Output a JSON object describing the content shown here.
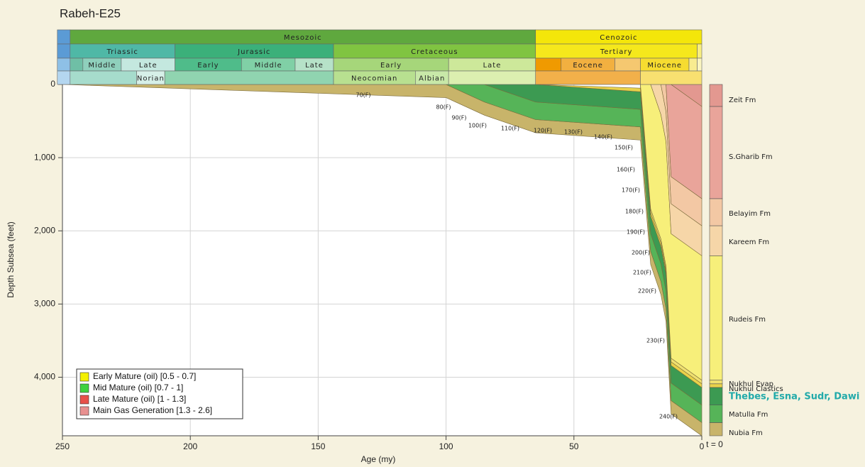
{
  "chart_data": {
    "type": "burial-history",
    "title": "Rabeh-E25",
    "x_label": "Age (my)",
    "y_label": "Depth Subsea (feet)",
    "present_label": "t = 0",
    "xlim": [
      250,
      0
    ],
    "ylim": [
      0,
      4800
    ],
    "xticks": [
      250,
      200,
      150,
      100,
      50,
      0
    ],
    "yticks": [
      0,
      {
        "value": 1000,
        "label": "1,000"
      },
      {
        "value": 2000,
        "label": "2,000"
      },
      {
        "value": 3000,
        "label": "3,000"
      },
      {
        "value": 4000,
        "label": "4,000"
      }
    ],
    "grid": true,
    "timescale": [
      [
        {
          "start": 252,
          "end": 247,
          "color": "#5b9bd5"
        },
        {
          "label": "Mesozoic",
          "start": 247,
          "end": 65,
          "color": "#5fa83e"
        },
        {
          "label": "Cenozoic",
          "start": 65,
          "end": 0,
          "color": "#f4e60a"
        }
      ],
      [
        {
          "start": 252,
          "end": 247,
          "color": "#5b9bd5"
        },
        {
          "label": "Triassic",
          "start": 247,
          "end": 206,
          "color": "#4fb8a6"
        },
        {
          "label": "Jurassic",
          "start": 206,
          "end": 144,
          "color": "#3bb07a"
        },
        {
          "label": "Cretaceous",
          "start": 144,
          "end": 65,
          "color": "#80c441"
        },
        {
          "label": "Tertiary",
          "start": 65,
          "end": 1.8,
          "color": "#f5e81c"
        },
        {
          "start": 1.8,
          "end": 0,
          "color": "#f8ee80"
        }
      ],
      [
        {
          "start": 252,
          "end": 247,
          "color": "#8ec0e6"
        },
        {
          "start": 247,
          "end": 242,
          "color": "#6fbfa6"
        },
        {
          "label": "Middle",
          "start": 242,
          "end": 227,
          "color": "#8fd0bc"
        },
        {
          "label": "Late",
          "start": 227,
          "end": 206,
          "color": "#c4e8df"
        },
        {
          "label": "Early",
          "start": 206,
          "end": 180,
          "color": "#4fbc8a"
        },
        {
          "label": "Middle",
          "start": 180,
          "end": 159,
          "color": "#80d0a6"
        },
        {
          "label": "Late",
          "start": 159,
          "end": 144,
          "color": "#b6e2c8"
        },
        {
          "label": "Early",
          "start": 144,
          "end": 99,
          "color": "#a6d67a"
        },
        {
          "label": "Late",
          "start": 99,
          "end": 65,
          "color": "#cde89a"
        },
        {
          "start": 65,
          "end": 55,
          "color": "#f09a00"
        },
        {
          "label": "Eocene",
          "start": 55,
          "end": 34,
          "color": "#f2b040"
        },
        {
          "start": 34,
          "end": 24,
          "color": "#f5c870"
        },
        {
          "label": "Miocene",
          "start": 24,
          "end": 5,
          "color": "#f6dc30"
        },
        {
          "start": 5,
          "end": 1.8,
          "color": "#f8ec90"
        },
        {
          "start": 1.8,
          "end": 0,
          "color": "#fbf5c0"
        }
      ],
      [
        {
          "start": 252,
          "end": 247,
          "color": "#b4d6f0"
        },
        {
          "start": 247,
          "end": 221,
          "color": "#a6dccc"
        },
        {
          "label": "Norian",
          "start": 221,
          "end": 210,
          "color": "#d6f0e8"
        },
        {
          "start": 210,
          "end": 144,
          "color": "#90d4b0"
        },
        {
          "label": "Neocomian",
          "start": 144,
          "end": 112,
          "color": "#b8e090"
        },
        {
          "label": "Albian",
          "start": 112,
          "end": 99,
          "color": "#c8e8a8"
        },
        {
          "start": 99,
          "end": 65,
          "color": "#dcefb0"
        },
        {
          "start": 65,
          "end": 24,
          "color": "#f2b04a"
        },
        {
          "start": 24,
          "end": 0,
          "color": "#f8e070"
        }
      ]
    ],
    "x": [
      250,
      100,
      85,
      65,
      24,
      20,
      16,
      14,
      12,
      0
    ],
    "formations": [
      {
        "name": "Nubia Fm",
        "color": "#c8b46a",
        "depths": [
          0,
          180,
          420,
          660,
          760,
          2460,
          2870,
          3240,
          4500,
          4800
        ]
      },
      {
        "name": "Matulla Fm",
        "color": "#56b458",
        "depths": [
          null,
          0,
          240,
          480,
          580,
          2280,
          2690,
          3060,
          4320,
          4620
        ]
      },
      {
        "name": "Thebes, Esna, Sudr, Dawi",
        "color": "#3c9a52",
        "depths": [
          null,
          null,
          0,
          240,
          340,
          2040,
          2450,
          2820,
          4080,
          4380
        ]
      },
      {
        "name": "Nukhul Clastics",
        "color": "#e9d24a",
        "depths": [
          null,
          null,
          null,
          0,
          100,
          1800,
          2210,
          2580,
          3840,
          4140
        ]
      },
      {
        "name": "Nukhul Evap",
        "color": "#efe070",
        "depths": [
          null,
          null,
          null,
          null,
          50,
          1750,
          2160,
          2530,
          3790,
          4090
        ]
      },
      {
        "name": "Rudeis Fm",
        "color": "#f7ef7a",
        "depths": [
          null,
          null,
          null,
          null,
          0,
          1700,
          2110,
          2480,
          3740,
          4040
        ]
      },
      {
        "name": "Kareem Fm",
        "color": "#f6d6a8",
        "depths": [
          null,
          null,
          null,
          null,
          null,
          0,
          410,
          780,
          2040,
          2340
        ]
      },
      {
        "name": "Belayim Fm",
        "color": "#f3c8a4",
        "depths": [
          null,
          null,
          null,
          null,
          null,
          null,
          0,
          370,
          1630,
          1930
        ]
      },
      {
        "name": "S.Gharib Fm",
        "color": "#e9a49a",
        "depths": [
          null,
          null,
          null,
          null,
          null,
          null,
          null,
          0,
          1260,
          1560
        ]
      },
      {
        "name": "Zeit Fm",
        "color": "#e39890",
        "depths": [
          null,
          null,
          null,
          null,
          null,
          null,
          null,
          null,
          0,
          300
        ]
      }
    ],
    "isotherms": [
      "70(F)",
      "80(F)",
      "90(F)",
      "100(F)",
      "110(F)",
      "120(F)",
      "130(F)",
      "140(F)",
      "150(F)",
      "160(F)",
      "170(F)",
      "180(F)",
      "190(F)",
      "200(F)",
      "210(F)",
      "220(F)",
      "230(F)",
      "240(F)"
    ],
    "legend": [
      {
        "name": "Early Mature (oil) [0.5 - 0.7]",
        "color": "#f4f000"
      },
      {
        "name": "Mid Mature (oil) [0.7 - 1]",
        "color": "#3ed23e"
      },
      {
        "name": "Late Mature (oil) [1 - 1.3]",
        "color": "#e8504a"
      },
      {
        "name": "Main Gas Generation [1.3 - 2.6]",
        "color": "#e89090"
      }
    ]
  }
}
